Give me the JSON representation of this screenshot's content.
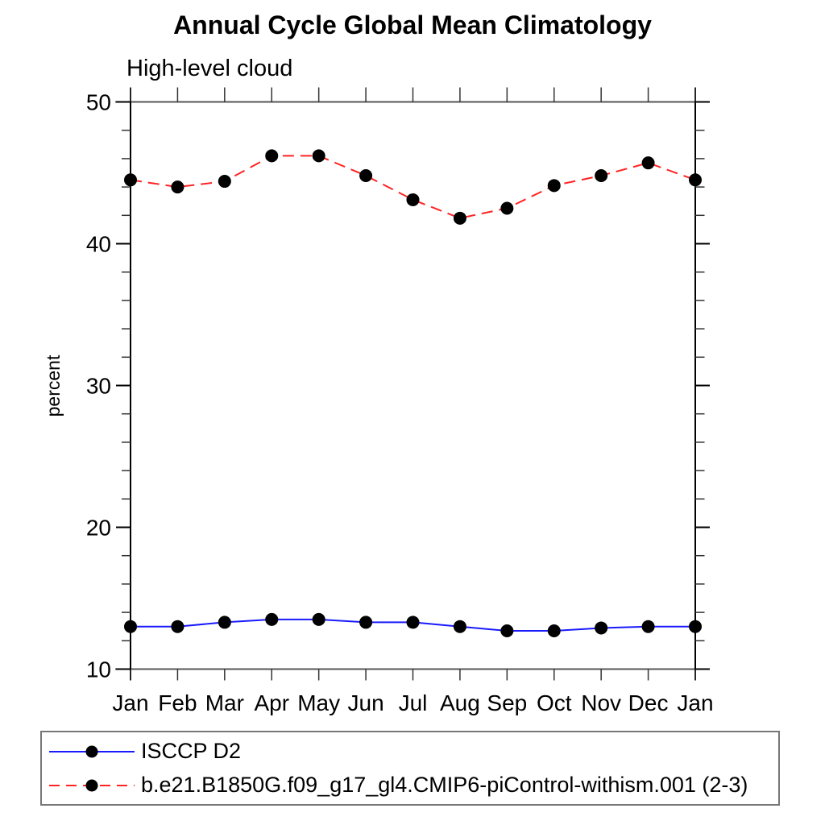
{
  "chart_data": {
    "type": "line",
    "title": "Annual Cycle Global Mean Climatology",
    "subtitle": "High-level cloud",
    "ylabel": "percent",
    "xlabel": "",
    "x_tick_labels": [
      "Jan",
      "Feb",
      "Mar",
      "Apr",
      "May",
      "Jun",
      "Jul",
      "Aug",
      "Sep",
      "Oct",
      "Nov",
      "Dec",
      "Jan"
    ],
    "ylim": [
      10,
      50
    ],
    "y_major_ticks": [
      10,
      20,
      30,
      40,
      50
    ],
    "y_minor_step": 2,
    "grid": false,
    "legend_position": "bottom-left-box",
    "series": [
      {
        "name": "ISCCP D2",
        "color": "#1a1aff",
        "line_style": "solid",
        "marker": "filled-circle",
        "marker_color": "#000000",
        "values": [
          13.0,
          13.0,
          13.3,
          13.5,
          13.5,
          13.3,
          13.3,
          13.0,
          12.7,
          12.7,
          12.9,
          13.0,
          13.0
        ]
      },
      {
        "name": "b.e21.B1850G.f09_g17_gl4.CMIP6-piControl-withism.001 (2-3)",
        "color": "#ff2323",
        "line_style": "dashed",
        "marker": "filled-circle",
        "marker_color": "#000000",
        "values": [
          44.5,
          44.0,
          44.4,
          46.2,
          46.2,
          44.8,
          43.1,
          41.8,
          42.5,
          44.1,
          44.8,
          45.7,
          44.5
        ]
      }
    ],
    "axis_colors": {
      "side_axes": "#000000",
      "top_bottom_border": "#555555",
      "ticks": "#333333"
    }
  }
}
